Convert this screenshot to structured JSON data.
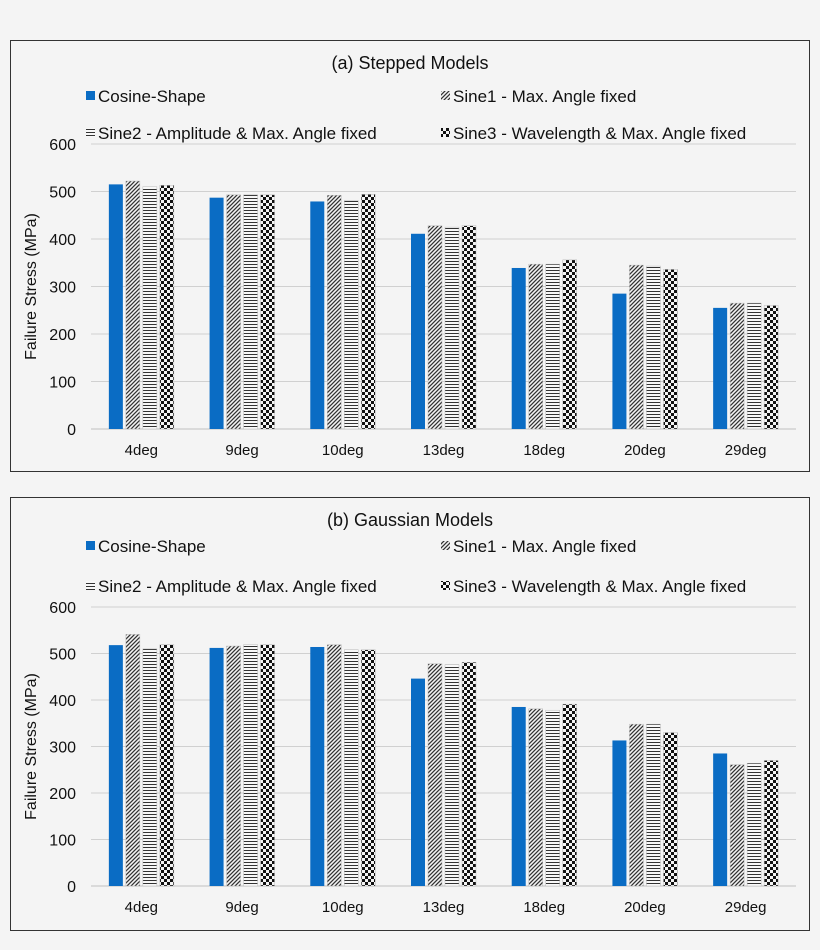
{
  "colors": {
    "cosine": "#0a6cc4",
    "grid": "#d0d0d0",
    "axis": "#bfbfbf"
  },
  "chart_data": [
    {
      "type": "bar",
      "title": "(a) Stepped Models",
      "ylabel": "Failure Stress (MPa)",
      "xlabel": "",
      "ylim": [
        0,
        600
      ],
      "yticks": [
        0,
        100,
        200,
        300,
        400,
        500,
        600
      ],
      "grid": true,
      "legend": "top",
      "categories": [
        "4deg",
        "9deg",
        "10deg",
        "13deg",
        "18deg",
        "20deg",
        "29deg"
      ],
      "series": [
        {
          "name": "Cosine-Shape",
          "pattern": "solid-blue",
          "values": [
            515,
            487,
            479,
            411,
            339,
            285,
            255
          ]
        },
        {
          "name": "Sine1 - Max. Angle fixed",
          "pattern": "diagonal-hatch",
          "values": [
            522,
            493,
            492,
            428,
            347,
            345,
            265
          ]
        },
        {
          "name": "Sine2 - Amplitude & Max. Angle fixed",
          "pattern": "horizontal-lines",
          "values": [
            510,
            493,
            481,
            425,
            347,
            343,
            265
          ]
        },
        {
          "name": "Sine3 - Wavelength & Max. Angle fixed",
          "pattern": "checkerboard",
          "values": [
            513,
            493,
            494,
            428,
            356,
            336,
            260
          ]
        }
      ]
    },
    {
      "type": "bar",
      "title": "(b) Gaussian Models",
      "ylabel": "Failure Stress (MPa)",
      "xlabel": "",
      "ylim": [
        0,
        600
      ],
      "yticks": [
        0,
        100,
        200,
        300,
        400,
        500,
        600
      ],
      "grid": true,
      "legend": "top",
      "categories": [
        "4deg",
        "9deg",
        "10deg",
        "13deg",
        "18deg",
        "20deg",
        "29deg"
      ],
      "series": [
        {
          "name": "Cosine-Shape",
          "pattern": "solid-blue",
          "values": [
            518,
            512,
            514,
            446,
            385,
            313,
            285
          ]
        },
        {
          "name": "Sine1 - Max. Angle fixed",
          "pattern": "diagonal-hatch",
          "values": [
            541,
            516,
            519,
            478,
            381,
            348,
            261
          ]
        },
        {
          "name": "Sine2 - Amplitude & Max. Angle fixed",
          "pattern": "horizontal-lines",
          "values": [
            510,
            519,
            508,
            476,
            378,
            348,
            264
          ]
        },
        {
          "name": "Sine3 - Wavelength & Max. Angle fixed",
          "pattern": "checkerboard",
          "values": [
            519,
            519,
            508,
            481,
            391,
            330,
            270
          ]
        }
      ]
    }
  ]
}
